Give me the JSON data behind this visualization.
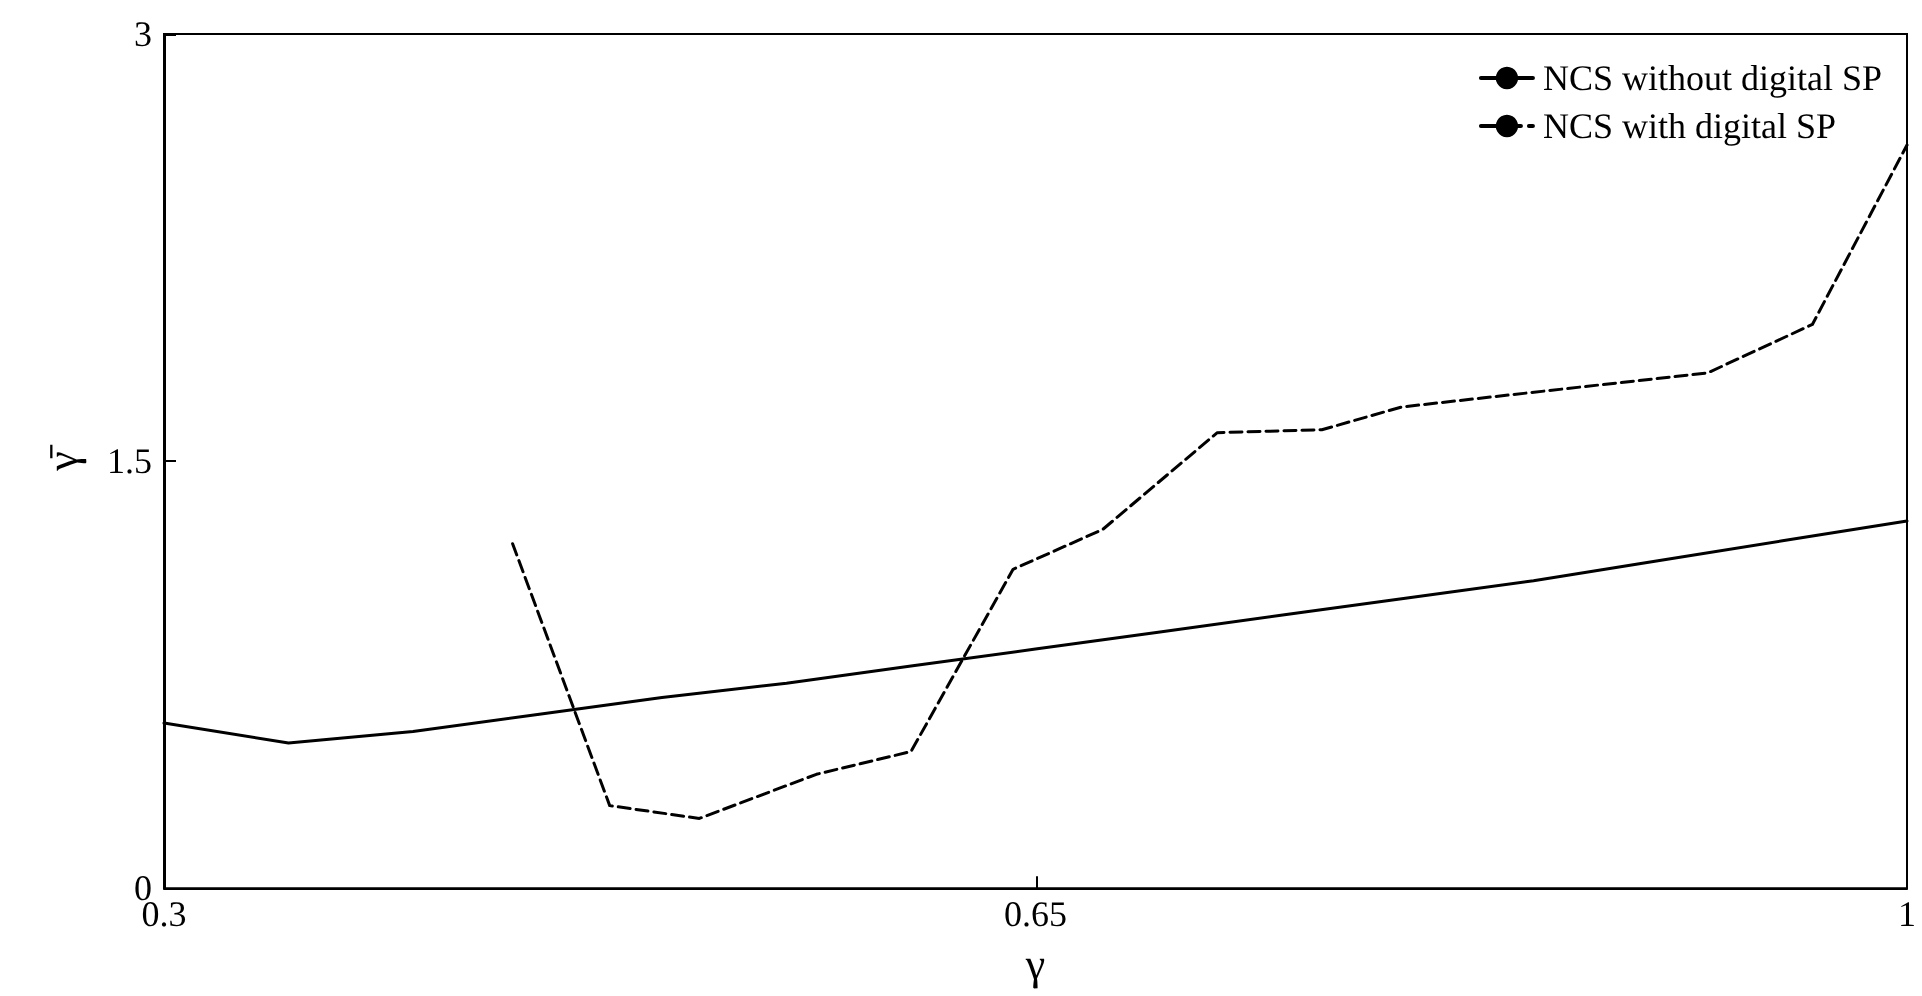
{
  "chart_data": {
    "type": "line",
    "xlabel": "γ",
    "ylabel": "γ̄",
    "xlim": [
      0.3,
      1
    ],
    "xticks": [
      0.3,
      0.65,
      1
    ],
    "ylim": [
      0,
      3
    ],
    "yticks": [
      0,
      1.5,
      3
    ],
    "legend": "top right",
    "grid": false,
    "marker": "none",
    "series": [
      {
        "name": "NCS without digital SP",
        "color": "#000000",
        "line_style": "solid",
        "x": [
          0.3,
          0.35,
          0.4,
          0.45,
          0.5,
          0.55,
          0.6,
          0.65,
          0.7,
          0.75,
          0.8,
          0.85,
          0.9,
          0.95,
          1
        ],
        "values": [
          0.58,
          0.51,
          0.55,
          0.61,
          0.67,
          0.72,
          0.78,
          0.84,
          0.9,
          0.96,
          1.02,
          1.08,
          1.15,
          1.22,
          1.29
        ]
      },
      {
        "name": "NCS with digital SP",
        "color": "#000000",
        "line_style": "dashed",
        "x": [
          0.44,
          0.479,
          0.515,
          0.562,
          0.6,
          0.641,
          0.677,
          0.723,
          0.765,
          0.797,
          0.92,
          0.962,
          1
        ],
        "values": [
          1.21,
          0.29,
          0.245,
          0.4,
          0.48,
          1.12,
          1.26,
          1.6,
          1.61,
          1.69,
          1.81,
          1.98,
          2.61
        ]
      }
    ]
  }
}
